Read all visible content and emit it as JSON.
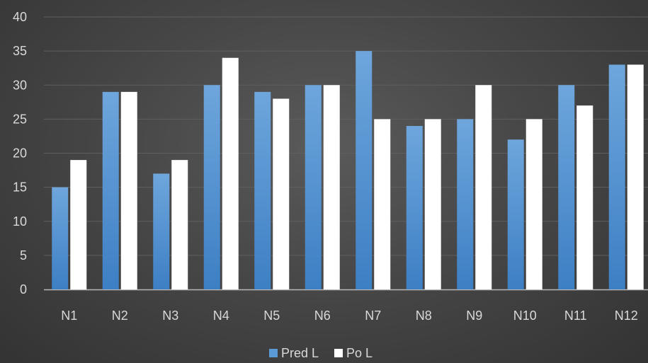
{
  "chart_data": {
    "type": "bar",
    "title": "",
    "xlabel": "",
    "ylabel": "",
    "categories": [
      "N1",
      "N2",
      "N3",
      "N4",
      "N5",
      "N6",
      "N7",
      "N8",
      "N9",
      "N10",
      "N11",
      "N12"
    ],
    "series": [
      {
        "name": "Pred L",
        "color": "#5b9bd5",
        "values": [
          15,
          29,
          17,
          30,
          29,
          30,
          35,
          24,
          25,
          22,
          30,
          33
        ]
      },
      {
        "name": "Po L",
        "color": "#ffffff",
        "values": [
          19,
          29,
          19,
          34,
          28,
          30,
          25,
          25,
          30,
          25,
          27,
          33
        ]
      }
    ],
    "ylim": [
      0,
      40
    ],
    "yticks": [
      0,
      5,
      10,
      15,
      20,
      25,
      30,
      35,
      40
    ],
    "grid": true,
    "legend_position": "bottom",
    "colors": {
      "background": "#474747",
      "gridline": "#5f5f5f",
      "axis": "#b8b8b8",
      "text": "#d9d9d9"
    }
  }
}
